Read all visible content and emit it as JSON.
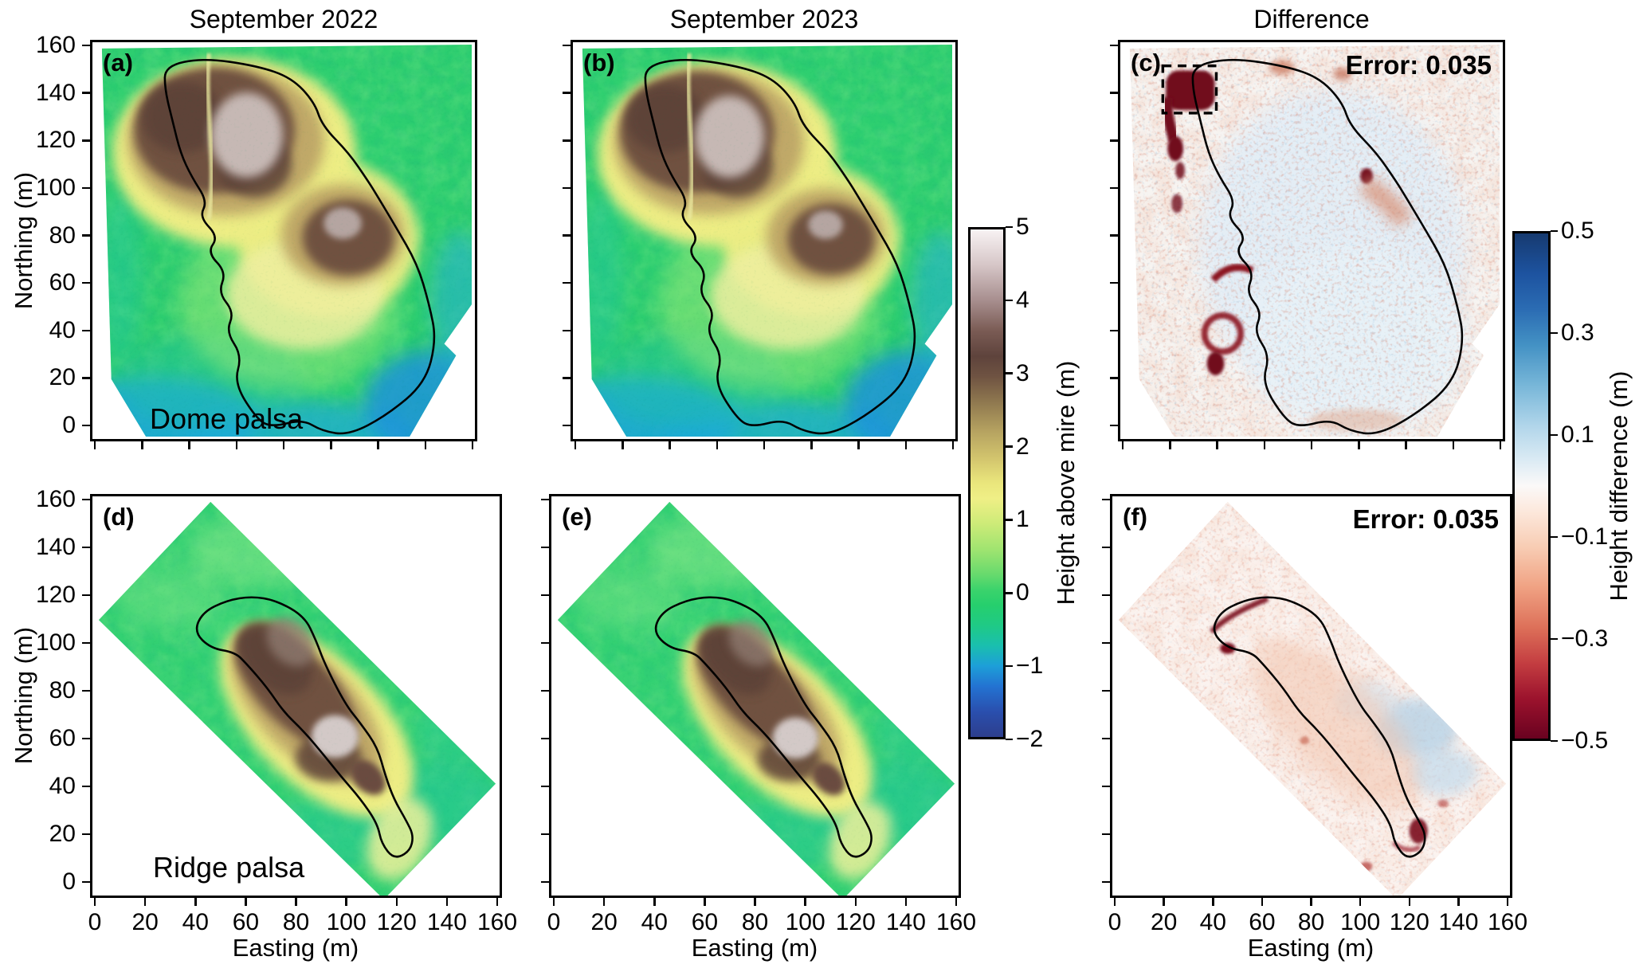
{
  "figure": {
    "column_titles": [
      "September 2022",
      "September 2023",
      "Difference"
    ],
    "axis": {
      "xlabel": "Easting (m)",
      "ylabel": "Northing (m)",
      "xticks": [
        "0",
        "20",
        "40",
        "60",
        "80",
        "100",
        "120",
        "140",
        "160"
      ],
      "yticks": [
        "160",
        "140",
        "120",
        "100",
        "80",
        "60",
        "40",
        "20",
        "0"
      ]
    },
    "panels": {
      "a": {
        "label": "(a)",
        "annotation": "Dome palsa"
      },
      "b": {
        "label": "(b)"
      },
      "c": {
        "label": "(c)",
        "error": "Error: 0.035"
      },
      "d": {
        "label": "(d)",
        "annotation": "Ridge palsa"
      },
      "e": {
        "label": "(e)"
      },
      "f": {
        "label": "(f)",
        "error": "Error: 0.035"
      }
    },
    "colorbars": [
      {
        "label": "Height above mire (m)",
        "ticks": [
          "5",
          "4",
          "3",
          "2",
          "1",
          "0",
          "−1",
          "−2"
        ],
        "stops": [
          [
            0,
            "#f8f3f4"
          ],
          [
            7,
            "#d6c6c7"
          ],
          [
            14,
            "#a78e8e"
          ],
          [
            20,
            "#7a5b54"
          ],
          [
            25,
            "#5e433c"
          ],
          [
            29,
            "#6f5342"
          ],
          [
            34,
            "#8f784f"
          ],
          [
            40,
            "#b7a461"
          ],
          [
            45,
            "#d2c46d"
          ],
          [
            50,
            "#eae67c"
          ],
          [
            53,
            "#efef86"
          ],
          [
            58,
            "#cdeb78"
          ],
          [
            63,
            "#a0e470"
          ],
          [
            68,
            "#67da6d"
          ],
          [
            71,
            "#3bd36c"
          ],
          [
            74,
            "#26cf6d"
          ],
          [
            78,
            "#1fca85"
          ],
          [
            82,
            "#1abfae"
          ],
          [
            86,
            "#1d9fd8"
          ],
          [
            90,
            "#2373d2"
          ],
          [
            95,
            "#2a4fae"
          ],
          [
            100,
            "#2d3e8d"
          ]
        ]
      },
      {
        "label": "Height difference (m)",
        "ticks": [
          "0.5",
          "0.3",
          "0.1",
          "−0.1",
          "−0.3",
          "−0.5"
        ],
        "stops": [
          [
            0,
            "#163a70"
          ],
          [
            8,
            "#1d53a0"
          ],
          [
            15,
            "#2b6cb3"
          ],
          [
            22,
            "#4391c4"
          ],
          [
            30,
            "#77b6d8"
          ],
          [
            38,
            "#b0d5ea"
          ],
          [
            45,
            "#dcebf4"
          ],
          [
            50,
            "#fbf9f8"
          ],
          [
            55,
            "#fce8dc"
          ],
          [
            62,
            "#f8cdb4"
          ],
          [
            70,
            "#f0a283"
          ],
          [
            78,
            "#dd7059"
          ],
          [
            85,
            "#c43e41"
          ],
          [
            92,
            "#9c132d"
          ],
          [
            100,
            "#6a0220"
          ]
        ]
      }
    ]
  },
  "chart_data": {
    "type": "heatmap",
    "layout": {
      "rows": 2,
      "cols": 3,
      "grid": "2x3 map panels + 2 shared colorbars"
    },
    "columns": [
      "September 2022",
      "September 2023",
      "Difference"
    ],
    "rows": [
      {
        "site": "Dome palsa",
        "panels": [
          "a",
          "b",
          "c"
        ]
      },
      {
        "site": "Ridge palsa",
        "panels": [
          "d",
          "e",
          "f"
        ]
      }
    ],
    "x_axis": {
      "label": "Easting (m)",
      "ticks": [
        0,
        20,
        40,
        60,
        80,
        100,
        120,
        140,
        160
      ],
      "range": [
        0,
        170
      ]
    },
    "y_axis": {
      "label": "Northing (m)",
      "ticks": [
        0,
        20,
        40,
        60,
        80,
        100,
        120,
        140,
        160
      ],
      "range": [
        0,
        165
      ]
    },
    "color_scales": [
      {
        "applies_to": [
          "a",
          "b",
          "d",
          "e"
        ],
        "label": "Height above mire (m)",
        "range": [
          -2,
          5
        ],
        "ticks": [
          5,
          4,
          3,
          2,
          1,
          0,
          -1,
          -2
        ],
        "style": "terrain: white(5) - brown(3-4) - tan/yellow(1.5-2.5) - green(0-1) - teal/blue(-1) - navy(-2)"
      },
      {
        "applies_to": [
          "c",
          "f"
        ],
        "label": "Height difference (m)",
        "range": [
          -0.5,
          0.5
        ],
        "ticks": [
          0.5,
          0.3,
          0.1,
          -0.1,
          -0.3,
          -0.5
        ],
        "style": "diverging blue-white-red (RdBu); blue = positive, dark red = negative"
      }
    ],
    "annotations": {
      "a": "Dome palsa site label; black closed curve outlines palsa extent; brown mound (height 3-5 m) in NW and centre-E, green mire (~0-1 m) around, blue wetter areas (-1 m) along S and E edges",
      "b": "Same dome palsa DEM in September 2023; pattern nearly identical to 2022",
      "c": "Difference map 2023-2022 with 'Error: 0.035'; mostly near 0 (white/pale blue); strong negative (dark red, <= -0.5 m) patch at NW corner marked by dashed rectangle; red degradation bands along W edge of palsa outline and E-central margin",
      "d": "Ridge palsa site label; rotated rectangular survey strip trending NW-SE; elongated brown ridge (2-4 m) with pale grey summit (~5 m) outlined in black within green mire",
      "e": "Same ridge palsa DEM in September 2023; pattern nearly identical to 2022",
      "f": "Difference map 2023-2022 with 'Error: 0.035'; light red (~ -0.1 m) over ridge, dark red spots at NW ridge edge and SE hook, scattered blue (positive) patches E of ridge"
    },
    "errors": {
      "c": 0.035,
      "f": 0.035
    }
  }
}
